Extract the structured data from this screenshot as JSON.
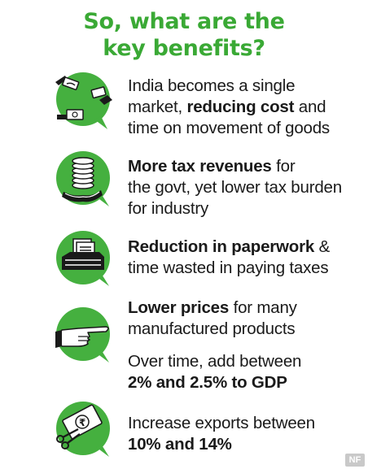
{
  "header": {
    "title_line1": "So, what are the",
    "title_line2": "key benefits?"
  },
  "colors": {
    "accent": "#3aa935",
    "bubble": "#45b03f",
    "text": "#1a1a1a"
  },
  "benefits": [
    {
      "icon": "money-exchange-icon",
      "line1": "India becomes a single",
      "line2_before": "market, ",
      "line2_bold": "reducing cost",
      "line2_after": " and",
      "line3": "time on movement of goods"
    },
    {
      "icon": "coin-stack-hand-icon",
      "line1_bold": "More tax revenues",
      "line1_after": " for",
      "line2": "the govt, yet lower tax burden",
      "line3": "for industry"
    },
    {
      "icon": "paperwork-tray-icon",
      "line1_bold": "Reduction in paperwork",
      "line1_after": " &",
      "line2": "time wasted in paying taxes"
    },
    {
      "icon": "pointing-hand-icon",
      "line1_bold": "Lower prices",
      "line1_after": " for many",
      "line2": "manufactured products",
      "line3": "Over time, add between",
      "line4_bold": "2% and 2.5% to GDP"
    },
    {
      "icon": "rupee-note-scissors-icon",
      "line1": "Increase exports between",
      "line2_bold": "10% and 14%"
    }
  ],
  "footer": {
    "logo_text": "NF"
  }
}
